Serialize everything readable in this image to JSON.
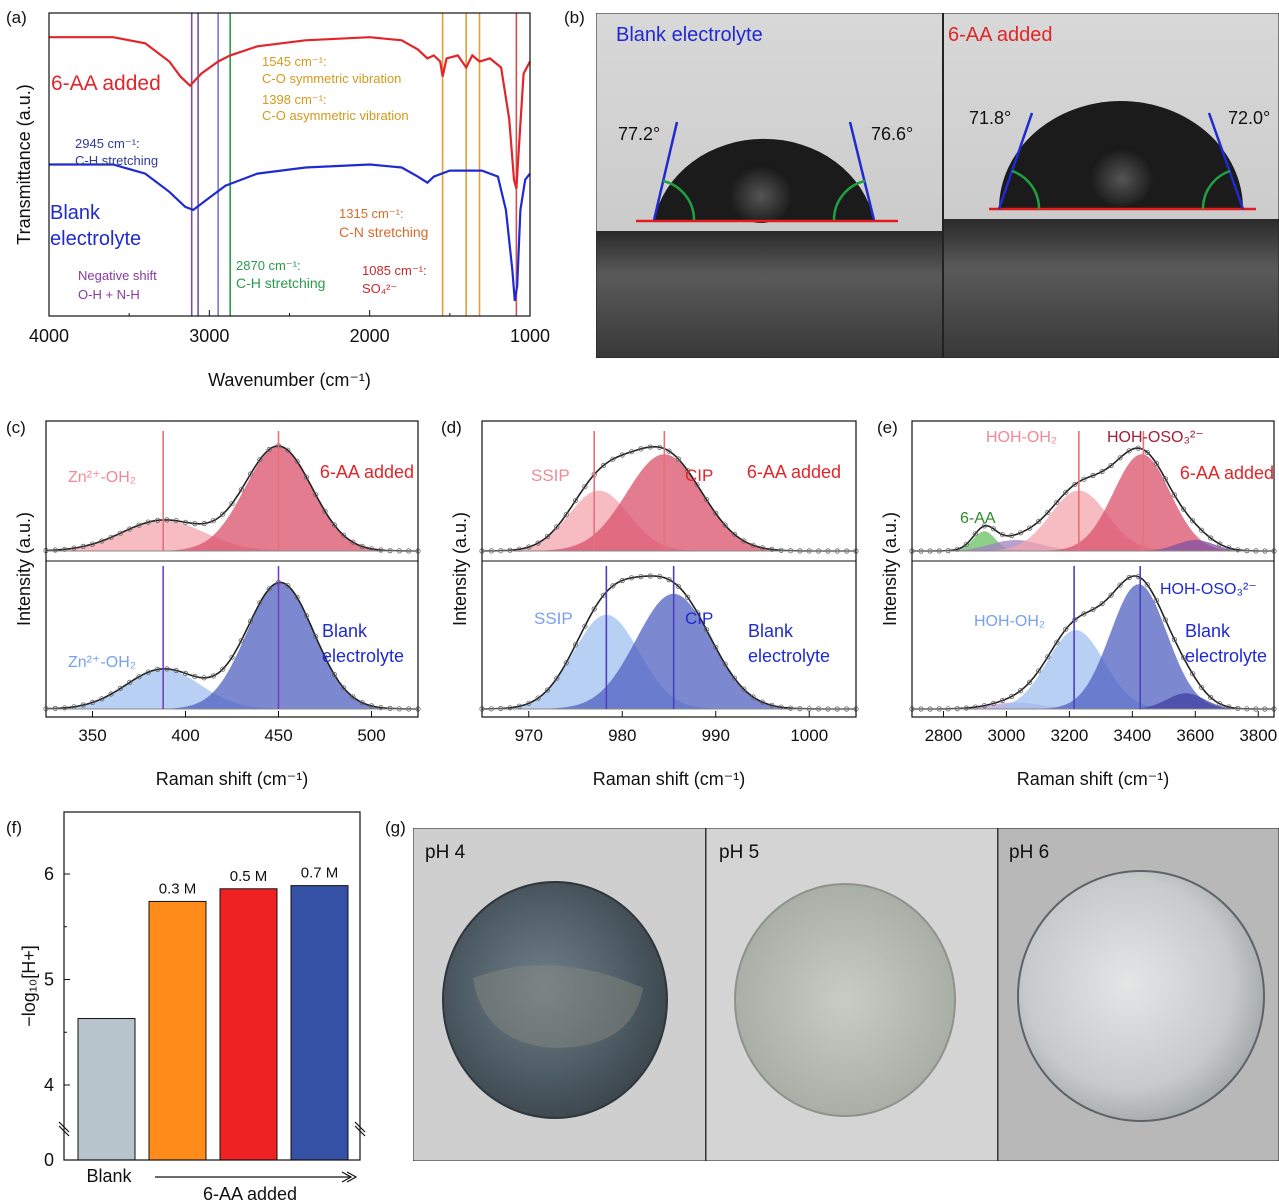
{
  "figure": {
    "panels": [
      "(a)",
      "(b)",
      "(c)",
      "(d)",
      "(e)",
      "(f)",
      "(g)"
    ]
  },
  "chart_data": [
    {
      "panel": "(a)",
      "type": "line",
      "xlabel": "Wavenumber (cm⁻¹)",
      "ylabel": "Transmittance (a.u.)",
      "xlim": [
        4000,
        1000
      ],
      "x_ticks": [
        "4000",
        "3000",
        "2000",
        "1000"
      ],
      "series": [
        {
          "name": "6-AA added",
          "color": "#e0262a",
          "points": [
            [
              4000,
              0.92
            ],
            [
              3600,
              0.92
            ],
            [
              3400,
              0.9
            ],
            [
              3250,
              0.84
            ],
            [
              3180,
              0.79
            ],
            [
              3120,
              0.76
            ],
            [
              3050,
              0.8
            ],
            [
              2945,
              0.84
            ],
            [
              2870,
              0.86
            ],
            [
              2700,
              0.89
            ],
            [
              2400,
              0.91
            ],
            [
              2000,
              0.92
            ],
            [
              1800,
              0.91
            ],
            [
              1700,
              0.88
            ],
            [
              1640,
              0.85
            ],
            [
              1600,
              0.86
            ],
            [
              1560,
              0.84
            ],
            [
              1545,
              0.79
            ],
            [
              1520,
              0.85
            ],
            [
              1450,
              0.86
            ],
            [
              1398,
              0.82
            ],
            [
              1360,
              0.86
            ],
            [
              1315,
              0.84
            ],
            [
              1250,
              0.85
            ],
            [
              1180,
              0.82
            ],
            [
              1130,
              0.65
            ],
            [
              1100,
              0.45
            ],
            [
              1085,
              0.42
            ],
            [
              1070,
              0.55
            ],
            [
              1040,
              0.8
            ],
            [
              1000,
              0.84
            ]
          ]
        },
        {
          "name": "Blank electrolyte",
          "color": "#1f2ad0",
          "points": [
            [
              4000,
              0.5
            ],
            [
              3600,
              0.5
            ],
            [
              3400,
              0.47
            ],
            [
              3250,
              0.41
            ],
            [
              3150,
              0.36
            ],
            [
              3100,
              0.35
            ],
            [
              3000,
              0.39
            ],
            [
              2900,
              0.43
            ],
            [
              2700,
              0.47
            ],
            [
              2400,
              0.49
            ],
            [
              2000,
              0.5
            ],
            [
              1800,
              0.49
            ],
            [
              1700,
              0.46
            ],
            [
              1640,
              0.44
            ],
            [
              1600,
              0.46
            ],
            [
              1500,
              0.48
            ],
            [
              1300,
              0.48
            ],
            [
              1200,
              0.46
            ],
            [
              1150,
              0.35
            ],
            [
              1110,
              0.15
            ],
            [
              1095,
              0.05
            ],
            [
              1080,
              0.1
            ],
            [
              1060,
              0.35
            ],
            [
              1030,
              0.45
            ],
            [
              1000,
              0.47
            ]
          ]
        }
      ],
      "vlines": [
        {
          "x": 3110,
          "color": "#7a4fa0"
        },
        {
          "x": 3070,
          "color": "#7a4fa0"
        },
        {
          "x": 2945,
          "color": "#7a7ad0"
        },
        {
          "x": 2870,
          "color": "#2a9a4a"
        },
        {
          "x": 1545,
          "color": "#e0a03a"
        },
        {
          "x": 1398,
          "color": "#e0a03a"
        },
        {
          "x": 1315,
          "color": "#e0a03a"
        },
        {
          "x": 1085,
          "color": "#d05050"
        }
      ],
      "annotations": [
        {
          "text": "6-AA added",
          "color": "#e0262a"
        },
        {
          "text": "Blank",
          "color": "#1f2ad0"
        },
        {
          "text": "electrolyte",
          "color": "#1f2ad0"
        },
        {
          "text": "2945 cm⁻¹:",
          "color": "#2f3a9a"
        },
        {
          "text": "C-H stretching",
          "color": "#2f3a9a"
        },
        {
          "text": "Negative shift",
          "color": "#8a3aa0"
        },
        {
          "text": "O-H + N-H",
          "color": "#8a3aa0"
        },
        {
          "text": "2870 cm⁻¹:",
          "color": "#2a9a4a"
        },
        {
          "text": "C-H stretching",
          "color": "#2a9a4a"
        },
        {
          "text": "1545 cm⁻¹:",
          "color": "#d49a1a"
        },
        {
          "text": "C-O symmetric vibration",
          "color": "#d49a1a"
        },
        {
          "text": "1398 cm⁻¹:",
          "color": "#d49a1a"
        },
        {
          "text": "C-O asymmetric vibration",
          "color": "#d49a1a"
        },
        {
          "text": "1315 cm⁻¹:",
          "color": "#d86a2a"
        },
        {
          "text": "C-N stretching",
          "color": "#d86a2a"
        },
        {
          "text": "1085 cm⁻¹:",
          "color": "#c82a2a"
        },
        {
          "text": "SO₄²⁻",
          "color": "#c82a2a"
        }
      ]
    },
    {
      "panel": "(c)",
      "type": "area",
      "xlabel": "Raman shift (cm⁻¹)",
      "ylabel": "Intensity (a.u.)",
      "xlim": [
        325,
        525
      ],
      "x_ticks": [
        "350",
        "400",
        "450",
        "500"
      ],
      "groups": [
        {
          "name": "6-AA added",
          "peaks": [
            {
              "label": "Zn²⁺-OH₂",
              "center": 388,
              "height": 0.28,
              "width": 22,
              "fill": "#f4a6ae"
            },
            {
              "center": 450,
              "height": 0.95,
              "width": 18,
              "fill": "#d9506a"
            }
          ],
          "vline": 388,
          "vline2": 450,
          "line_color": "#e8707a"
        },
        {
          "name": "Blank electrolyte",
          "peaks": [
            {
              "label": "Zn²⁺-OH₂",
              "center": 388,
              "height": 0.3,
              "width": 20,
              "fill": "#9fc0f0"
            },
            {
              "center": 451,
              "height": 0.95,
              "width": 18,
              "fill": "#5060c0"
            }
          ],
          "vline": 388,
          "vline2": 450,
          "line_color": "#7a40c0"
        }
      ],
      "labels": {
        "top_left": "Zn²⁺-OH₂",
        "top_right": "6-AA added",
        "bottom_left": "Zn²⁺-OH₂",
        "bottom_right_1": "Blank",
        "bottom_right_2": "electrolyte"
      }
    },
    {
      "panel": "(d)",
      "type": "area",
      "xlabel": "Raman shift (cm⁻¹)",
      "ylabel": "Intensity (a.u.)",
      "xlim": [
        965,
        1005
      ],
      "x_ticks": [
        "970",
        "980",
        "990",
        "1000"
      ],
      "groups": [
        {
          "name": "6-AA added",
          "peaks": [
            {
              "label": "SSIP",
              "center": 977.5,
              "height": 0.55,
              "width": 3.2,
              "fill": "#f4a6ae"
            },
            {
              "label": "CIP",
              "center": 984.5,
              "height": 0.88,
              "width": 4.0,
              "fill": "#d9506a"
            }
          ],
          "vlines": [
            977,
            984.5
          ],
          "line_color": "#e8707a"
        },
        {
          "name": "Blank electrolyte",
          "peaks": [
            {
              "label": "SSIP",
              "center": 978.3,
              "height": 0.72,
              "width": 3.5,
              "fill": "#9fc0f0"
            },
            {
              "label": "CIP",
              "center": 985.5,
              "height": 0.88,
              "width": 4.0,
              "fill": "#5060c0"
            }
          ],
          "vlines": [
            978.3,
            985.5
          ],
          "line_color": "#4a40c0"
        }
      ],
      "labels": {
        "ssip_top": "SSIP",
        "cip_top": "CIP",
        "top_right": "6-AA added",
        "ssip_bottom": "SSIP",
        "cip_bottom": "CIP",
        "bottom_right_1": "Blank",
        "bottom_right_2": "electrolyte"
      }
    },
    {
      "panel": "(e)",
      "type": "area",
      "xlabel": "Raman shift (cm⁻¹)",
      "ylabel": "Intensity (a.u.)",
      "xlim": [
        2700,
        3850
      ],
      "x_ticks": [
        "2800",
        "3000",
        "3200",
        "3400",
        "3600",
        "3800"
      ],
      "groups": [
        {
          "name": "6-AA added",
          "peaks": [
            {
              "label": "6-AA",
              "center": 2930,
              "height": 0.18,
              "width": 35,
              "fill": "#6ac060"
            },
            {
              "center": 3030,
              "height": 0.1,
              "width": 80,
              "fill": "#a080c0"
            },
            {
              "label": "HOH-OH₂",
              "center": 3230,
              "height": 0.55,
              "width": 90,
              "fill": "#f4a6ae"
            },
            {
              "label": "HOH-OSO₃²⁻",
              "center": 3430,
              "height": 0.88,
              "width": 90,
              "fill": "#d9506a"
            },
            {
              "center": 3600,
              "height": 0.1,
              "width": 60,
              "fill": "#8050a0"
            }
          ],
          "vlines": [
            3230,
            3435
          ],
          "line_color": "#e8707a"
        },
        {
          "name": "Blank electrolyte",
          "peaks": [
            {
              "center": 3030,
              "height": 0.05,
              "width": 80,
              "fill": "#c0a0d8"
            },
            {
              "label": "HOH-OH₂",
              "center": 3220,
              "height": 0.6,
              "width": 90,
              "fill": "#9fc0f0"
            },
            {
              "label": "HOH-OSO₃²⁻",
              "center": 3420,
              "height": 0.95,
              "width": 90,
              "fill": "#5060c0"
            },
            {
              "center": 3570,
              "height": 0.12,
              "width": 60,
              "fill": "#4040a0"
            }
          ],
          "vlines": [
            3215,
            3425
          ],
          "line_color": "#4a40c0"
        }
      ],
      "labels": {
        "hohoh_top": "HOH-OH₂",
        "hohoso_top": "HOH-OSO₃²⁻",
        "aa": "6-AA",
        "top_right": "6-AA added",
        "hohoh_bottom": "HOH-OH₂",
        "hohoso_bottom": "HOH-OSO₃²⁻",
        "bottom_right_1": "Blank",
        "bottom_right_2": "electrolyte"
      }
    },
    {
      "panel": "(f)",
      "type": "bar",
      "ylabel": "−log₁₀[H+]",
      "y_ticks": [
        "0",
        "4",
        "5",
        "6"
      ],
      "ylim_broken": [
        0,
        4,
        6.5
      ],
      "categories": [
        "Blank",
        "0.3 M",
        "0.5 M",
        "0.7 M"
      ],
      "values": [
        4.63,
        5.74,
        5.86,
        5.89
      ],
      "colors": [
        "#b8c4cc",
        "#ff8c1a",
        "#ee2222",
        "#3451a6"
      ],
      "bar_labels": [
        "",
        "0.3 M",
        "0.5 M",
        "0.7 M"
      ],
      "xlabel_left": "Blank",
      "xlabel_arrow": "6-AA added"
    }
  ],
  "contact_angle": {
    "panel": "(b)",
    "left": {
      "title": "Blank electrolyte",
      "title_color": "#1f2ad0",
      "angle_left": "77.2°",
      "angle_right": "76.6°"
    },
    "right": {
      "title": "6-AA added",
      "title_color": "#e0262a",
      "angle_left": "71.8°",
      "angle_right": "72.0°"
    }
  },
  "photos": {
    "panel": "(g)",
    "items": [
      {
        "title": "pH 4"
      },
      {
        "title": "pH 5"
      },
      {
        "title": "pH 6"
      }
    ]
  }
}
